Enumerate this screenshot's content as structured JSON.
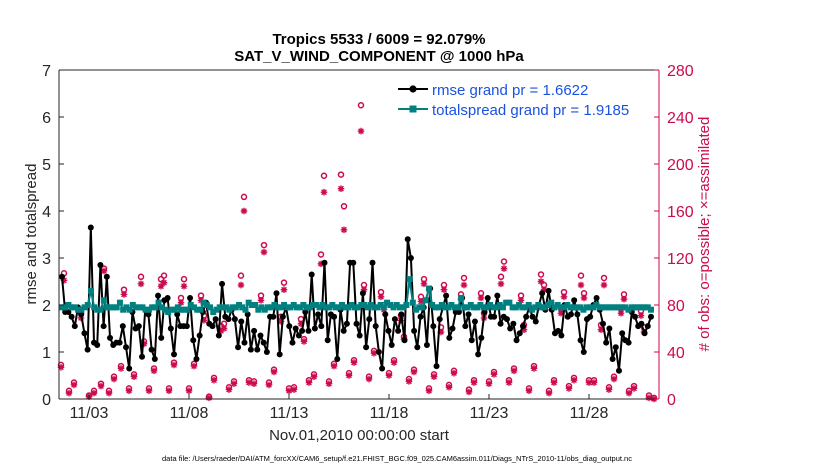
{
  "chart_data": {
    "type": "line",
    "title_line1": "Tropics 5533 / 6009 = 92.079%",
    "title_line2": "SAT_V_WIND_COMPONENT @ 1000 hPa",
    "xlabel": "Nov.01,2010 00:00:00 start",
    "ylabel_left": "rmse and totalspread",
    "ylabel_right": "# of obs: o=possible; ×=assimilated",
    "footnote": "data file: /Users/raeder/DAI/ATM_forcXX/CAM6_setup/f.e21.FHIST_BGC.f09_025.CAM6assim.011/Diags_NTrS_2010-11/obs_diag_output.nc",
    "x_range": [
      1.5,
      31.5
    ],
    "x_ticks": [
      3,
      8,
      13,
      18,
      23,
      28
    ],
    "x_tick_labels": [
      "11/03",
      "11/08",
      "11/13",
      "11/18",
      "11/23",
      "11/28"
    ],
    "y_left_range": [
      0,
      7
    ],
    "y_left_ticks": [
      "0",
      "1",
      "2",
      "3",
      "4",
      "5",
      "6",
      "7"
    ],
    "y_right_range": [
      0,
      280
    ],
    "y_right_ticks": [
      "0",
      "40",
      "80",
      "120",
      "160",
      "200",
      "240",
      "280"
    ],
    "colors": {
      "rmse": "#000000",
      "spread": "#008080",
      "obs": "#cc0a4f",
      "legend_text": "#1a52e0"
    },
    "series": [
      {
        "name": "rmse grand pr = 1.6622",
        "axis": "left",
        "values": [
          2.6,
          1.85,
          1.85,
          1.75,
          1.55,
          1.95,
          1.8,
          1.4,
          1.05,
          3.65,
          1.2,
          1.15,
          2.85,
          1.55,
          2.6,
          1.3,
          1.15,
          1.2,
          1.2,
          1.55,
          1.1,
          0.65,
          1.85,
          1.5,
          1.55,
          0.9,
          1.9,
          1.8,
          1.05,
          0.85,
          2.2,
          1.3,
          2.1,
          2.15,
          1.5,
          0.95,
          1.8,
          1.55,
          1.55,
          1.55,
          2.15,
          1.25,
          0.85,
          1.35,
          1.85,
          2.05,
          1.6,
          1.55,
          1.7,
          1.35,
          2.45,
          1.75,
          1.7,
          1.9,
          1.7,
          1.1,
          1.65,
          1.2,
          1.8,
          1.05,
          1.45,
          1.05,
          1.35,
          1.2,
          1.0,
          1.75,
          1.75,
          2.25,
          0.95,
          1.75,
          1.95,
          1.55,
          1.2,
          1.5,
          1.35,
          1.45,
          1.85,
          1.45,
          2.65,
          1.5,
          1.8,
          1.55,
          2.9,
          1.25,
          1.8,
          1.75,
          0.85,
          1.9,
          1.45,
          1.6,
          2.9,
          2.9,
          1.6,
          1.35,
          2.25,
          1.1,
          1.7,
          2.9,
          1.55,
          1.0,
          0.65,
          1.8,
          1.45,
          1.15,
          1.7,
          1.45,
          1.8,
          1.25,
          3.4,
          3.0,
          1.45,
          1.1,
          1.75,
          1.95,
          1.15,
          2.35,
          1.55,
          0.7,
          1.7,
          1.95,
          2.2,
          1.3,
          1.5,
          1.85,
          1.85,
          2.15,
          1.55,
          1.8,
          1.25,
          1.65,
          0.95,
          1.3,
          1.85,
          2.15,
          1.75,
          1.75,
          2.2,
          1.6,
          1.75,
          1.7,
          1.5,
          1.6,
          1.25,
          1.4,
          1.55,
          1.75,
          1.95,
          1.75,
          1.65,
          2.0,
          2.25,
          1.9,
          2.3,
          1.9,
          1.4,
          1.45,
          1.35,
          2.0,
          1.75,
          1.8,
          2.1,
          1.8,
          1.25,
          1.0,
          1.7,
          1.75,
          2.0,
          2.15,
          1.9,
          1.6,
          1.2,
          1.5,
          0.85,
          1.1,
          0.6,
          1.4,
          1.25,
          1.2,
          1.85,
          1.75,
          1.55,
          1.6,
          1.4,
          1.55,
          1.75
        ]
      },
      {
        "name": "totalspread grand pr = 1.9185",
        "axis": "left",
        "values": [
          1.95,
          1.95,
          2.0,
          1.95,
          1.95,
          1.9,
          1.9,
          1.95,
          2.0,
          2.3,
          1.95,
          1.9,
          1.9,
          2.1,
          1.95,
          1.95,
          1.95,
          1.95,
          2.05,
          1.9,
          1.95,
          1.9,
          2.0,
          1.95,
          1.95,
          1.95,
          1.9,
          1.9,
          1.95,
          1.95,
          2.05,
          1.95,
          1.9,
          1.85,
          1.9,
          1.9,
          1.95,
          1.9,
          1.9,
          1.9,
          2.0,
          1.95,
          1.9,
          1.9,
          2.05,
          2.0,
          1.95,
          1.85,
          1.9,
          1.95,
          1.95,
          1.95,
          1.9,
          1.95,
          1.95,
          2.0,
          1.95,
          1.9,
          2.05,
          2.0,
          2.0,
          1.9,
          1.95,
          1.9,
          1.95,
          1.95,
          2.0,
          1.95,
          1.95,
          2.0,
          1.95,
          1.95,
          2.0,
          1.95,
          1.95,
          2.0,
          1.95,
          1.95,
          2.0,
          2.0,
          1.95,
          2.0,
          1.95,
          1.95,
          2.0,
          1.95,
          1.95,
          2.0,
          1.95,
          1.95,
          2.0,
          1.95,
          1.95,
          2.0,
          2.0,
          1.95,
          2.0,
          1.95,
          1.95,
          2.0,
          1.95,
          2.05,
          2.0,
          1.95,
          2.0,
          1.95,
          1.95,
          2.0,
          2.55,
          2.05,
          1.9,
          1.95,
          1.95,
          2.1,
          2.35,
          2.0,
          1.95,
          1.95,
          2.0,
          1.95,
          1.95,
          2.0,
          1.95,
          1.95,
          2.15,
          1.95,
          1.95,
          2.0,
          1.95,
          1.95,
          2.0,
          1.95,
          1.95,
          2.0,
          1.95,
          1.95,
          2.0,
          1.95,
          2.05,
          2.05,
          1.95,
          1.95,
          2.0,
          1.95,
          1.95,
          2.0,
          1.9,
          1.95,
          2.0,
          1.95,
          1.95,
          2.0,
          2.05,
          1.95,
          2.0,
          1.95,
          1.95,
          2.0,
          1.95,
          1.95,
          1.95,
          1.95,
          1.9,
          1.95,
          1.95,
          1.95,
          2.0,
          1.95,
          1.95,
          1.95,
          1.95,
          1.95,
          1.95,
          1.95,
          1.95,
          1.95,
          1.9,
          1.95,
          1.95,
          1.95,
          1.95,
          1.95,
          1.95,
          1.9
        ]
      }
    ],
    "obs_possible": {
      "axis": "right",
      "points": [
        [
          1.6,
          29
        ],
        [
          1.75,
          107
        ],
        [
          2.0,
          7
        ],
        [
          2.25,
          14
        ],
        [
          2.6,
          73
        ],
        [
          3.0,
          3
        ],
        [
          3.25,
          7
        ],
        [
          3.6,
          13
        ],
        [
          3.75,
          111
        ],
        [
          4.0,
          7
        ],
        [
          4.25,
          19
        ],
        [
          4.6,
          28
        ],
        [
          4.75,
          93
        ],
        [
          5.0,
          9
        ],
        [
          5.25,
          21
        ],
        [
          5.6,
          104
        ],
        [
          5.75,
          49
        ],
        [
          6.0,
          9
        ],
        [
          6.25,
          26
        ],
        [
          6.6,
          102
        ],
        [
          6.75,
          105
        ],
        [
          7.0,
          9
        ],
        [
          7.25,
          31
        ],
        [
          7.6,
          86
        ],
        [
          7.75,
          102
        ],
        [
          8.0,
          9
        ],
        [
          8.25,
          30
        ],
        [
          8.6,
          88
        ],
        [
          8.75,
          71
        ],
        [
          9.0,
          2
        ],
        [
          9.25,
          18
        ],
        [
          9.6,
          62
        ],
        [
          9.75,
          64
        ],
        [
          10.0,
          10
        ],
        [
          10.25,
          15
        ],
        [
          10.6,
          105
        ],
        [
          10.75,
          172
        ],
        [
          11.0,
          16
        ],
        [
          11.25,
          15
        ],
        [
          11.6,
          88
        ],
        [
          11.75,
          131
        ],
        [
          12.0,
          14
        ],
        [
          12.25,
          25
        ],
        [
          12.6,
          70
        ],
        [
          12.75,
          99
        ],
        [
          13.0,
          9
        ],
        [
          13.25,
          10
        ],
        [
          13.6,
          68
        ],
        [
          13.75,
          51
        ],
        [
          14.0,
          16
        ],
        [
          14.25,
          21
        ],
        [
          14.6,
          123
        ],
        [
          14.75,
          190
        ],
        [
          15.0,
          15
        ],
        [
          15.25,
          30
        ],
        [
          15.6,
          191
        ],
        [
          15.75,
          164
        ],
        [
          16.0,
          22
        ],
        [
          16.25,
          33
        ],
        [
          16.6,
          250
        ],
        [
          16.75,
          97
        ],
        [
          17.0,
          19
        ],
        [
          17.25,
          41
        ],
        [
          17.6,
          91
        ],
        [
          17.75,
          80
        ],
        [
          18.0,
          22
        ],
        [
          18.25,
          33
        ],
        [
          18.6,
          71
        ],
        [
          18.75,
          53
        ],
        [
          19.0,
          17
        ],
        [
          19.25,
          25
        ],
        [
          19.6,
          87
        ],
        [
          19.75,
          102
        ],
        [
          20.0,
          9
        ],
        [
          20.25,
          21
        ],
        [
          20.6,
          61
        ],
        [
          20.75,
          97
        ],
        [
          21.0,
          12
        ],
        [
          21.25,
          24
        ],
        [
          21.6,
          89
        ],
        [
          21.75,
          103
        ],
        [
          22.0,
          8
        ],
        [
          22.25,
          16
        ],
        [
          22.6,
          90
        ],
        [
          22.75,
          73
        ],
        [
          23.0,
          15
        ],
        [
          23.25,
          23
        ],
        [
          23.6,
          104
        ],
        [
          23.75,
          117
        ],
        [
          24.0,
          16
        ],
        [
          24.25,
          26
        ],
        [
          24.6,
          88
        ],
        [
          24.75,
          63
        ],
        [
          25.0,
          9
        ],
        [
          25.25,
          28
        ],
        [
          25.6,
          106
        ],
        [
          25.75,
          97
        ],
        [
          26.0,
          7
        ],
        [
          26.25,
          16
        ],
        [
          26.6,
          77
        ],
        [
          26.75,
          91
        ],
        [
          27.0,
          11
        ],
        [
          27.25,
          18
        ],
        [
          27.6,
          105
        ],
        [
          27.75,
          90
        ],
        [
          28.0,
          16
        ],
        [
          28.25,
          16
        ],
        [
          28.6,
          63
        ],
        [
          28.75,
          103
        ],
        [
          29.0,
          10
        ],
        [
          29.25,
          19
        ],
        [
          29.6,
          77
        ],
        [
          29.75,
          89
        ],
        [
          30.0,
          7
        ],
        [
          30.25,
          11
        ],
        [
          30.6,
          75
        ],
        [
          30.75,
          61
        ],
        [
          31.0,
          3
        ],
        [
          31.25,
          1
        ]
      ]
    },
    "obs_assimilated": {
      "axis": "right",
      "points": [
        [
          1.6,
          27
        ],
        [
          1.75,
          101
        ],
        [
          2.0,
          5
        ],
        [
          2.25,
          12
        ],
        [
          2.6,
          69
        ],
        [
          3.0,
          2
        ],
        [
          3.25,
          5
        ],
        [
          3.6,
          11
        ],
        [
          3.75,
          109
        ],
        [
          4.0,
          5
        ],
        [
          4.25,
          17
        ],
        [
          4.6,
          26
        ],
        [
          4.75,
          89
        ],
        [
          5.0,
          7
        ],
        [
          5.25,
          19
        ],
        [
          5.6,
          98
        ],
        [
          5.75,
          47
        ],
        [
          6.0,
          7
        ],
        [
          6.25,
          24
        ],
        [
          6.6,
          96
        ],
        [
          6.75,
          99
        ],
        [
          7.0,
          7
        ],
        [
          7.25,
          29
        ],
        [
          7.6,
          82
        ],
        [
          7.75,
          96
        ],
        [
          8.0,
          7
        ],
        [
          8.25,
          28
        ],
        [
          8.6,
          84
        ],
        [
          8.75,
          67
        ],
        [
          9.0,
          1
        ],
        [
          9.25,
          16
        ],
        [
          9.6,
          58
        ],
        [
          9.75,
          60
        ],
        [
          10.0,
          8
        ],
        [
          10.25,
          13
        ],
        [
          10.6,
          97
        ],
        [
          10.75,
          160
        ],
        [
          11.0,
          14
        ],
        [
          11.25,
          13
        ],
        [
          11.6,
          84
        ],
        [
          11.75,
          125
        ],
        [
          12.0,
          12
        ],
        [
          12.25,
          23
        ],
        [
          12.6,
          66
        ],
        [
          12.75,
          93
        ],
        [
          13.0,
          7
        ],
        [
          13.25,
          8
        ],
        [
          13.6,
          64
        ],
        [
          13.75,
          49
        ],
        [
          14.0,
          14
        ],
        [
          14.25,
          19
        ],
        [
          14.6,
          115
        ],
        [
          14.75,
          176
        ],
        [
          15.0,
          13
        ],
        [
          15.25,
          28
        ],
        [
          15.6,
          179
        ],
        [
          15.75,
          144
        ],
        [
          16.0,
          20
        ],
        [
          16.25,
          31
        ],
        [
          16.6,
          228
        ],
        [
          16.75,
          93
        ],
        [
          17.0,
          17
        ],
        [
          17.25,
          39
        ],
        [
          17.6,
          87
        ],
        [
          17.75,
          76
        ],
        [
          18.0,
          20
        ],
        [
          18.25,
          31
        ],
        [
          18.6,
          67
        ],
        [
          18.75,
          51
        ],
        [
          19.0,
          15
        ],
        [
          19.25,
          23
        ],
        [
          19.6,
          83
        ],
        [
          19.75,
          98
        ],
        [
          20.0,
          7
        ],
        [
          20.25,
          19
        ],
        [
          20.6,
          57
        ],
        [
          20.75,
          93
        ],
        [
          21.0,
          10
        ],
        [
          21.25,
          22
        ],
        [
          21.6,
          85
        ],
        [
          21.75,
          97
        ],
        [
          22.0,
          6
        ],
        [
          22.25,
          14
        ],
        [
          22.6,
          86
        ],
        [
          22.75,
          69
        ],
        [
          23.0,
          13
        ],
        [
          23.25,
          21
        ],
        [
          23.6,
          98
        ],
        [
          23.75,
          111
        ],
        [
          24.0,
          14
        ],
        [
          24.25,
          24
        ],
        [
          24.6,
          84
        ],
        [
          24.75,
          59
        ],
        [
          25.0,
          7
        ],
        [
          25.25,
          26
        ],
        [
          25.6,
          100
        ],
        [
          25.75,
          93
        ],
        [
          26.0,
          5
        ],
        [
          26.25,
          14
        ],
        [
          26.6,
          73
        ],
        [
          26.75,
          87
        ],
        [
          27.0,
          9
        ],
        [
          27.25,
          16
        ],
        [
          27.6,
          97
        ],
        [
          27.75,
          86
        ],
        [
          28.0,
          14
        ],
        [
          28.25,
          14
        ],
        [
          28.6,
          59
        ],
        [
          28.75,
          97
        ],
        [
          29.0,
          8
        ],
        [
          29.25,
          17
        ],
        [
          29.6,
          73
        ],
        [
          29.75,
          85
        ],
        [
          30.0,
          5
        ],
        [
          30.25,
          9
        ],
        [
          30.6,
          71
        ],
        [
          30.75,
          57
        ],
        [
          31.0,
          1
        ],
        [
          31.25,
          0
        ]
      ]
    }
  }
}
